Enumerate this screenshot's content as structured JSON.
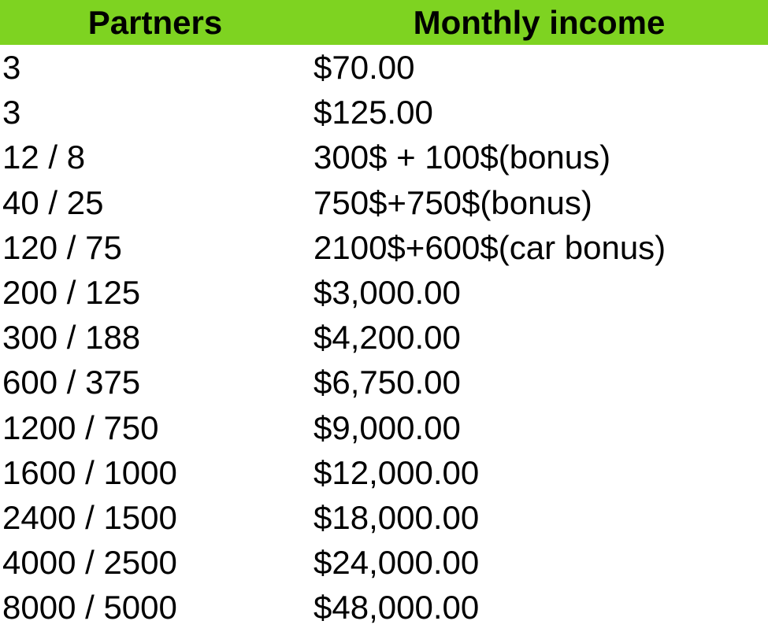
{
  "colors": {
    "header_background": "#7ed321",
    "text": "#000000"
  },
  "table": {
    "headers": [
      "Partners",
      "Monthly income"
    ],
    "rows": [
      [
        "3",
        "$70.00"
      ],
      [
        "3",
        "$125.00"
      ],
      [
        "12 / 8",
        "300$ + 100$(bonus)"
      ],
      [
        "40 / 25",
        "750$+750$(bonus)"
      ],
      [
        "120 / 75",
        "2100$+600$(car bonus)"
      ],
      [
        "200 / 125",
        "$3,000.00"
      ],
      [
        "300 / 188",
        "$4,200.00"
      ],
      [
        "600 / 375",
        "$6,750.00"
      ],
      [
        "1200 / 750",
        "$9,000.00"
      ],
      [
        "1600 / 1000",
        "$12,000.00"
      ],
      [
        "2400 / 1500",
        "$18,000.00"
      ],
      [
        "4000 / 2500",
        "$24,000.00"
      ],
      [
        "8000 / 5000",
        "$48,000.00"
      ]
    ]
  }
}
